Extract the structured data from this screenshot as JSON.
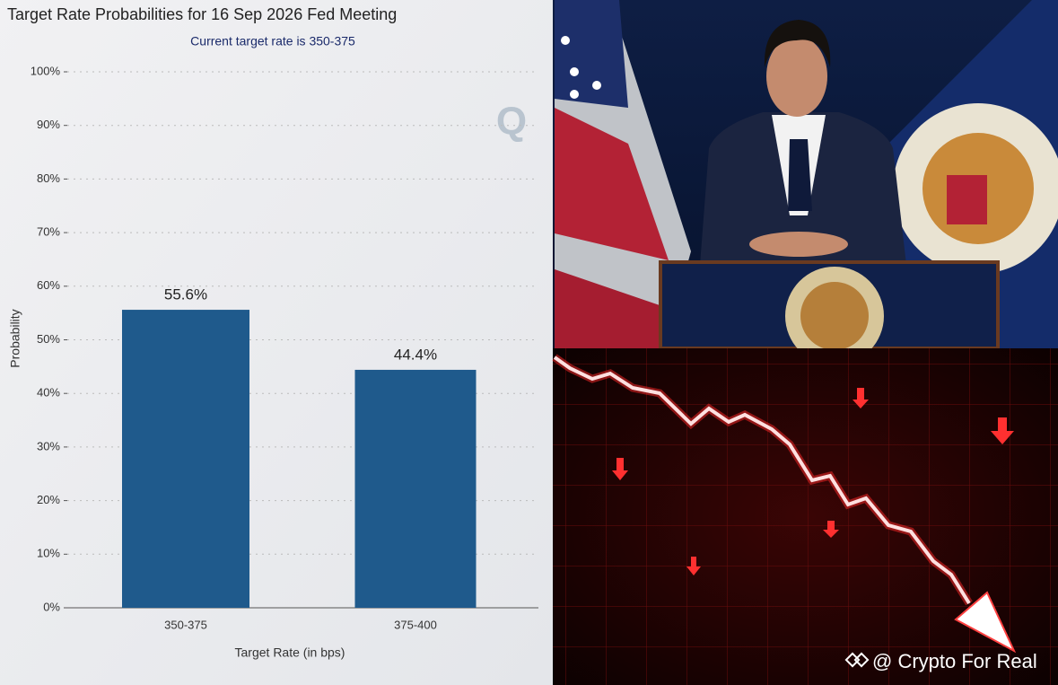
{
  "chart_data": {
    "type": "bar",
    "title": "Target Rate Probabilities for 16 Sep 2026 Fed Meeting",
    "subtitle": "Current target rate is 350-375",
    "x_label": "Target Rate (in bps)",
    "y_label": "Probability",
    "categories": [
      "350-375",
      "375-400"
    ],
    "values": [
      55.6,
      44.4
    ],
    "value_labels": [
      "55.6%",
      "44.4%"
    ],
    "color": "#1f5a8c",
    "ylim": [
      0,
      100
    ],
    "yticks": [
      {
        "value": 0,
        "label": "0%"
      },
      {
        "value": 10,
        "label": "10%"
      },
      {
        "value": 20,
        "label": "20%"
      },
      {
        "value": 30,
        "label": "30%"
      },
      {
        "value": 40,
        "label": "40%"
      },
      {
        "value": 50,
        "label": "50%"
      },
      {
        "value": 60,
        "label": "60%"
      },
      {
        "value": 70,
        "label": "70%"
      },
      {
        "value": 80,
        "label": "80%"
      },
      {
        "value": 90,
        "label": "90%"
      },
      {
        "value": 100,
        "label": "100%"
      }
    ],
    "grid": true,
    "logo": "Q"
  },
  "watermark": "@ Crypto For Real"
}
